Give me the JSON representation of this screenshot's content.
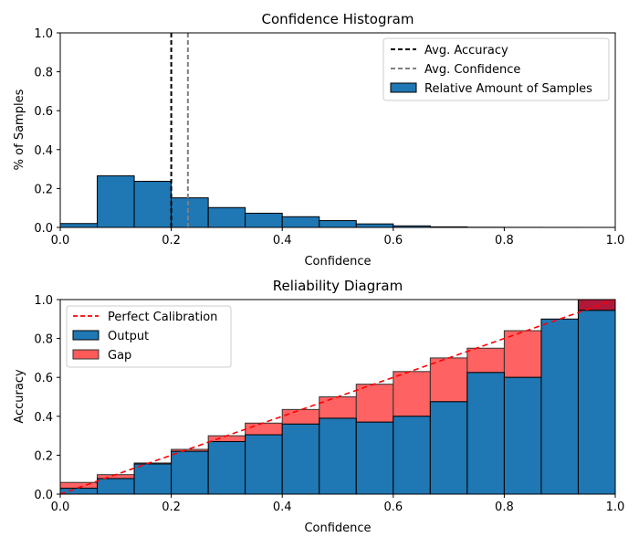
{
  "chart_data": [
    {
      "type": "bar",
      "title": "Confidence Histogram",
      "xlabel": "Confidence",
      "ylabel": "% of Samples",
      "xlim": [
        0,
        1
      ],
      "ylim": [
        0,
        1
      ],
      "xticks": [
        "0.0",
        "0.2",
        "0.4",
        "0.6",
        "0.8",
        "1.0"
      ],
      "yticks": [
        "0.0",
        "0.2",
        "0.4",
        "0.6",
        "0.8",
        "1.0"
      ],
      "bin_edges": [
        0,
        0.0667,
        0.1333,
        0.2,
        0.2667,
        0.3333,
        0.4,
        0.4667,
        0.5333,
        0.6,
        0.6667,
        0.7333,
        0.8,
        0.8667,
        0.9333,
        1.0
      ],
      "series": [
        {
          "name": "Relative Amount of Samples",
          "color": "#1f77b4",
          "values": [
            0.02,
            0.265,
            0.237,
            0.152,
            0.102,
            0.073,
            0.055,
            0.035,
            0.018,
            0.008,
            0.003,
            0.001,
            0.0005,
            0.0003,
            0.0002
          ]
        }
      ],
      "lines": [
        {
          "name": "Avg. Accuracy",
          "x": 0.2,
          "color": "#000000",
          "style": "dashed"
        },
        {
          "name": "Avg. Confidence",
          "x": 0.23,
          "color": "#808080",
          "style": "dashed"
        }
      ],
      "legend": [
        "Avg. Accuracy",
        "Avg. Confidence",
        "Relative Amount of Samples"
      ],
      "legend_position": "top-right"
    },
    {
      "type": "bar",
      "title": "Reliability Diagram",
      "xlabel": "Confidence",
      "ylabel": "Accuracy",
      "xlim": [
        0,
        1
      ],
      "ylim": [
        0,
        1
      ],
      "xticks": [
        "0.0",
        "0.2",
        "0.4",
        "0.6",
        "0.8",
        "1.0"
      ],
      "yticks": [
        "0.0",
        "0.2",
        "0.4",
        "0.6",
        "0.8",
        "1.0"
      ],
      "bin_edges": [
        0,
        0.0667,
        0.1333,
        0.2,
        0.2667,
        0.3333,
        0.4,
        0.4667,
        0.5333,
        0.6,
        0.6667,
        0.7333,
        0.8,
        0.8667,
        0.9333,
        1.0
      ],
      "series": [
        {
          "name": "Output",
          "color": "#1f77b4",
          "values": [
            0.03,
            0.08,
            0.155,
            0.22,
            0.27,
            0.305,
            0.36,
            0.39,
            0.37,
            0.4,
            0.475,
            0.625,
            0.6,
            0.9,
            0.945
          ]
        },
        {
          "name": "Gap",
          "color": "#ff5a5a",
          "bin_centers": [
            0.0333,
            0.1,
            0.1667,
            0.2333,
            0.3,
            0.3667,
            0.4333,
            0.5,
            0.5667,
            0.6333,
            0.7,
            0.7667,
            0.8333,
            0.9,
            0.9667
          ],
          "values": [
            0.06,
            0.1,
            0.16,
            0.23,
            0.3,
            0.365,
            0.435,
            0.5,
            0.565,
            0.63,
            0.7,
            0.75,
            0.84,
            0.9,
            1.0
          ]
        }
      ],
      "reference_line": {
        "name": "Perfect Calibration",
        "color": "#ff0000",
        "style": "dashed",
        "from": [
          0,
          0
        ],
        "to": [
          1,
          1
        ]
      },
      "legend": [
        "Perfect Calibration",
        "Output",
        "Gap"
      ],
      "legend_position": "top-left"
    }
  ]
}
